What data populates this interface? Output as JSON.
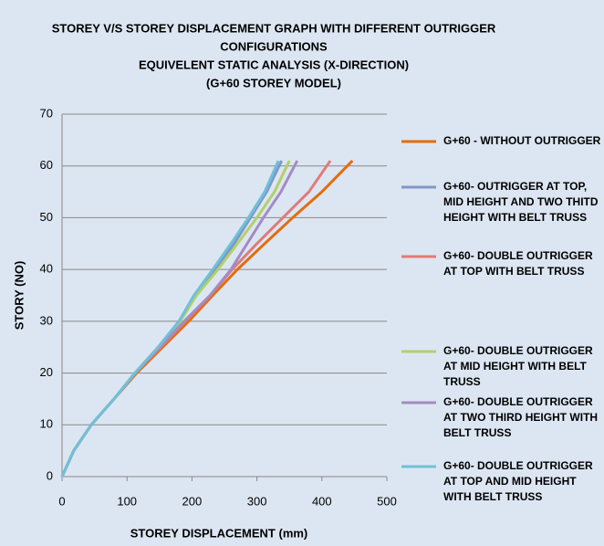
{
  "chart_data": {
    "type": "line",
    "title": [
      "STOREY V/S STOREY DISPLACEMENT GRAPH WITH DIFFERENT OUTRIGGER",
      "CONFIGURATIONS",
      "EQUIVELENT STATIC ANALYSIS (X-DIRECTION)",
      "(G+60  STOREY MODEL)"
    ],
    "xlabel": "STOREY DISPLACEMENT (mm)",
    "ylabel": "STORY  (NO)",
    "xlim": [
      0,
      500
    ],
    "xticks": [
      0,
      100,
      200,
      300,
      400,
      500
    ],
    "ylim": [
      0,
      70
    ],
    "yticks": [
      0,
      10,
      20,
      30,
      40,
      50,
      60,
      70
    ],
    "grid": true,
    "series": [
      {
        "name": "G+60 - WITHOUT OUTRIGGER",
        "color": "#e46c0a",
        "x": [
          0,
          18,
          45,
          80,
          115,
          155,
          195,
          232,
          270,
          312,
          355,
          400,
          447
        ],
        "values": [
          0,
          5,
          10,
          15,
          20,
          25,
          30,
          35,
          40,
          45,
          50,
          55,
          61
        ]
      },
      {
        "name": "G+60- OUTRIGGER AT TOP, MID HEIGHT AND TWO THITD HEIGHT WITH BELT TRUSS",
        "color": "#7f96c8",
        "x": [
          0,
          18,
          45,
          80,
          112,
          148,
          180,
          205,
          235,
          265,
          290,
          315,
          338
        ],
        "values": [
          0,
          5,
          10,
          15,
          20,
          25,
          30,
          35,
          40,
          45,
          50,
          55,
          61
        ]
      },
      {
        "name": "G+60- DOUBLE OUTRIGGER AT TOP WITH BELT TRUSS",
        "color": "#e07b78",
        "x": [
          0,
          18,
          45,
          80,
          113,
          152,
          190,
          228,
          262,
          300,
          340,
          380,
          413
        ],
        "values": [
          0,
          5,
          10,
          15,
          20,
          25,
          30,
          35,
          40,
          45,
          50,
          55,
          61
        ]
      },
      {
        "name": "G+60- DOUBLE OUTRIGGER AT MID HEIGHT WITH BELT TRUSS",
        "color": "#b3cf6b",
        "x": [
          0,
          18,
          45,
          80,
          112,
          148,
          182,
          207,
          240,
          270,
          300,
          327,
          350
        ],
        "values": [
          0,
          5,
          10,
          15,
          20,
          25,
          30,
          35,
          40,
          45,
          50,
          55,
          61
        ]
      },
      {
        "name": "G+60- DOUBLE OUTRIGGER AT TWO THIRD HEIGHT WITH BELT TRUSS",
        "color": "#a48bc4",
        "x": [
          0,
          18,
          45,
          80,
          113,
          150,
          188,
          228,
          260,
          285,
          310,
          337,
          362
        ],
        "values": [
          0,
          5,
          10,
          15,
          20,
          25,
          30,
          35,
          40,
          45,
          50,
          55,
          61
        ]
      },
      {
        "name": "G+60- DOUBLE OUTRIGGER AT TOP AND MID HEIGHT WITH BELT TRUSS",
        "color": "#6fc0d8",
        "x": [
          0,
          18,
          45,
          80,
          112,
          148,
          180,
          203,
          232,
          260,
          287,
          312,
          333
        ],
        "values": [
          0,
          5,
          10,
          15,
          20,
          25,
          30,
          35,
          40,
          45,
          50,
          55,
          61
        ]
      }
    ]
  }
}
